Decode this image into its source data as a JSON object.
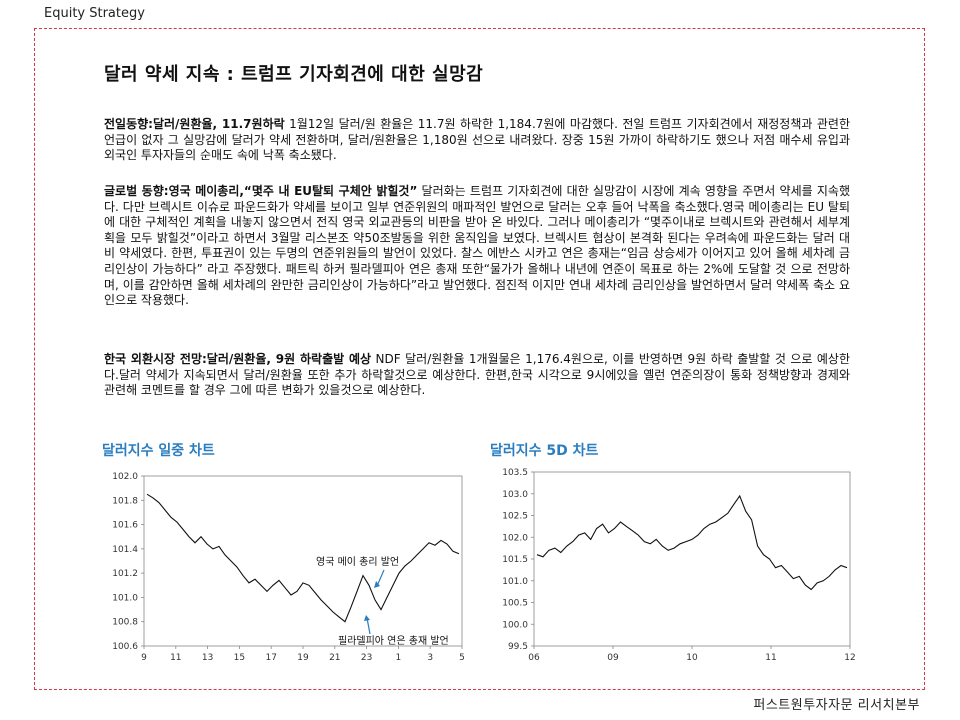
{
  "header": {
    "label": "Equity Strategy"
  },
  "title": "달러 약세 지속 : 트럼프 기자회견에 대한 실망감",
  "paragraphs": [
    {
      "lead": "전일동향:달러/원환율, 11.7원하락",
      "body": " 1월12일 달러/원 환율은 11.7원 하락한 1,184.7원에 마감했다. 전일 트럼프 기자회견에서 재정정책과 관련한 언급이 없자 그 실망감에 달러가 약세 전환하며, 달러/원환율은 1,180원 선으로 내려왔다. 장중 15원 가까이 하락하기도 했으나 저점 매수세 유입과 외국인 투자자들의 순매도 속에 낙폭 축소됐다."
    },
    {
      "lead": "글로벌 동향:영국 메이총리,“몇주 내 EU탈퇴 구체안 밝힐것”",
      "body": " 달러화는 트럼프 기자회견에 대한 실망감이 시장에 계속 영향을 주면서 약세를 지속했다. 다만 브렉시트 이슈로 파운드화가 약세를 보이고 일부 연준위원의 매파적인 발언으로 달러는 오후 들어 낙폭을 축소했다.영국 메이총리는 EU 탈퇴에 대한 구체적인 계획을 내놓지 않으면서 전직 영국 외교관등의 비판을 받아 온 바있다. 그러나 메이총리가 “몇주이내로 브렉시트와 관련해서 세부계획을 모두 밝힐것”이라고 하면서 3월말 리스본조 약50조발동을 위한 움직임을 보였다. 브렉시트 협상이 본격화 된다는 우려속에 파운드화는 달러 대비 약세였다. 한편, 투표권이 있는 두명의 연준위원들의 발언이 있었다. 찰스 에반스 시카고 연은 총재는“임금 상승세가 이어지고 있어 올해 세차례 금리인상이 가능하다” 라고 주장했다. 패트릭 하커 필라델피아 연은 총재 또한“물가가 올해나 내년에 연준이 목표로 하는 2%에 도달할 것 으로 전망하며, 이를 감안하면 올해 세차례의 완만한 금리인상이 가능하다”라고 발언했다. 점진적 이지만 연내 세차례 금리인상을 발언하면서 달러 약세폭 축소 요인으로 작용했다."
    },
    {
      "lead": "한국 외환시장 전망:달러/원환율, 9원 하락출발 예상",
      "body": " NDF 달러/원환율 1개월물은 1,176.4원으로, 이를 반영하면 9원 하락 출발할 것 으로 예상한다.달러 약세가 지속되면서 달러/원환율 또한 추가 하락할것으로 예상한다. 한편,한국 시각으로 9시에있을 옐런 연준의장이 통화 정책방향과 경제와 관련해 코멘트를 할 경우 그에 따른 변화가 있을것으로 예상한다."
    }
  ],
  "charts": [
    {
      "title": "달러지수 일중 차트"
    },
    {
      "title": "달러지수 5D 차트"
    }
  ],
  "chart_data": [
    {
      "type": "line",
      "x_ticks": [
        "9",
        "11",
        "13",
        "15",
        "17",
        "19",
        "21",
        "23",
        "1",
        "3",
        "5"
      ],
      "y_ticks": [
        "102.0",
        "101.8",
        "101.6",
        "101.4",
        "101.2",
        "101.0",
        "100.8",
        "100.6"
      ],
      "ylim": [
        100.6,
        102.0
      ],
      "annotations": [
        "영국 메이 총리 발언",
        "필라델피아 연은 총재 발언"
      ],
      "series": [
        {
          "color": "#111111",
          "values": [
            101.85,
            101.82,
            101.78,
            101.72,
            101.66,
            101.62,
            101.56,
            101.5,
            101.45,
            101.5,
            101.44,
            101.4,
            101.42,
            101.35,
            101.3,
            101.25,
            101.18,
            101.12,
            101.15,
            101.1,
            101.05,
            101.1,
            101.14,
            101.08,
            101.02,
            101.05,
            101.12,
            101.1,
            101.04,
            100.98,
            100.93,
            100.88,
            100.84,
            100.8,
            100.92,
            101.05,
            101.18,
            101.1,
            100.98,
            100.9,
            101.0,
            101.1,
            101.2,
            101.26,
            101.3,
            101.35,
            101.4,
            101.45,
            101.43,
            101.47,
            101.44,
            101.38,
            101.36
          ]
        }
      ]
    },
    {
      "type": "line",
      "x_ticks": [
        "06",
        "09",
        "10",
        "11",
        "12"
      ],
      "y_ticks": [
        "103.5",
        "103.0",
        "102.5",
        "102.0",
        "101.5",
        "101.0",
        "100.5",
        "100.0",
        "99.5"
      ],
      "ylim": [
        99.5,
        103.5
      ],
      "series": [
        {
          "color": "#111111",
          "values": [
            101.6,
            101.55,
            101.7,
            101.75,
            101.65,
            101.8,
            101.9,
            102.05,
            102.1,
            101.95,
            102.2,
            102.3,
            102.1,
            102.2,
            102.35,
            102.25,
            102.15,
            102.05,
            101.9,
            101.85,
            101.95,
            101.8,
            101.7,
            101.75,
            101.85,
            101.9,
            101.95,
            102.05,
            102.2,
            102.3,
            102.35,
            102.45,
            102.55,
            102.75,
            102.95,
            102.6,
            102.4,
            101.8,
            101.6,
            101.5,
            101.3,
            101.35,
            101.2,
            101.05,
            101.1,
            100.9,
            100.8,
            100.95,
            101.0,
            101.1,
            101.25,
            101.35,
            101.3
          ]
        }
      ]
    }
  ],
  "footer": {
    "text": "퍼스트원투자자문 리서치본부"
  }
}
